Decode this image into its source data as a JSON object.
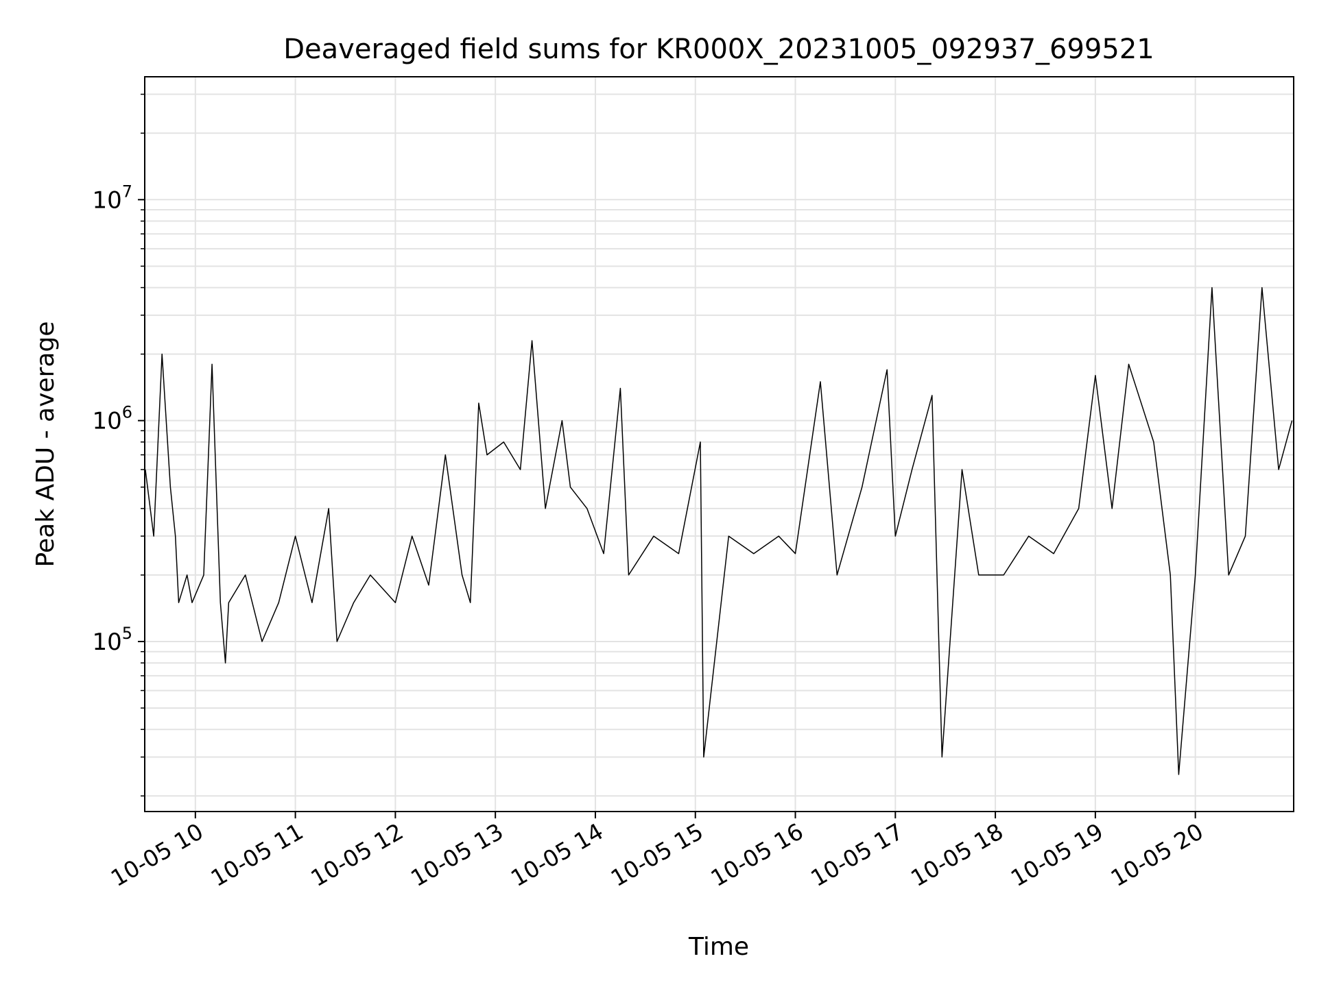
{
  "chart_data": {
    "type": "line",
    "title": "Deaveraged field sums for KR000X_20231005_092937_699521",
    "xlabel": "Time",
    "ylabel": "Peak ADU - average",
    "y_scale": "log",
    "ylim": [
      17000,
      36000000
    ],
    "xlim": [
      "2023-10-05 09:29:37",
      "2023-10-05 20:59:00"
    ],
    "y_ticks": [
      {
        "value": 100000,
        "base": "10",
        "exp": "5"
      },
      {
        "value": 1000000,
        "base": "10",
        "exp": "6"
      },
      {
        "value": 10000000,
        "base": "10",
        "exp": "7"
      }
    ],
    "x_ticks": [
      {
        "value": "2023-10-05 10:00",
        "label": "10-05 10"
      },
      {
        "value": "2023-10-05 11:00",
        "label": "10-05 11"
      },
      {
        "value": "2023-10-05 12:00",
        "label": "10-05 12"
      },
      {
        "value": "2023-10-05 13:00",
        "label": "10-05 13"
      },
      {
        "value": "2023-10-05 14:00",
        "label": "10-05 14"
      },
      {
        "value": "2023-10-05 15:00",
        "label": "10-05 15"
      },
      {
        "value": "2023-10-05 16:00",
        "label": "10-05 16"
      },
      {
        "value": "2023-10-05 17:00",
        "label": "10-05 17"
      },
      {
        "value": "2023-10-05 18:00",
        "label": "10-05 18"
      },
      {
        "value": "2023-10-05 19:00",
        "label": "10-05 19"
      },
      {
        "value": "2023-10-05 20:00",
        "label": "10-05 20"
      }
    ],
    "grid": "on, major and minor",
    "line_color": "#000000",
    "series": [
      {
        "x": [
          "2023-10-05 09:30",
          "2023-10-05 09:35",
          "2023-10-05 09:40",
          "2023-10-05 09:45",
          "2023-10-05 09:48",
          "2023-10-05 09:50",
          "2023-10-05 09:55",
          "2023-10-05 09:58",
          "2023-10-05 10:05",
          "2023-10-05 10:10",
          "2023-10-05 10:15",
          "2023-10-05 10:18",
          "2023-10-05 10:20",
          "2023-10-05 10:30",
          "2023-10-05 10:40",
          "2023-10-05 10:50",
          "2023-10-05 11:00",
          "2023-10-05 11:10",
          "2023-10-05 11:20",
          "2023-10-05 11:25",
          "2023-10-05 11:35",
          "2023-10-05 11:45",
          "2023-10-05 12:00",
          "2023-10-05 12:10",
          "2023-10-05 12:20",
          "2023-10-05 12:30",
          "2023-10-05 12:40",
          "2023-10-05 12:45",
          "2023-10-05 12:50",
          "2023-10-05 12:55",
          "2023-10-05 13:05",
          "2023-10-05 13:15",
          "2023-10-05 13:22",
          "2023-10-05 13:30",
          "2023-10-05 13:40",
          "2023-10-05 13:45",
          "2023-10-05 13:55",
          "2023-10-05 14:05",
          "2023-10-05 14:15",
          "2023-10-05 14:20",
          "2023-10-05 14:35",
          "2023-10-05 14:50",
          "2023-10-05 15:03",
          "2023-10-05 15:05",
          "2023-10-05 15:20",
          "2023-10-05 15:35",
          "2023-10-05 15:50",
          "2023-10-05 16:00",
          "2023-10-05 16:15",
          "2023-10-05 16:25",
          "2023-10-05 16:40",
          "2023-10-05 16:55",
          "2023-10-05 17:00",
          "2023-10-05 17:10",
          "2023-10-05 17:22",
          "2023-10-05 17:28",
          "2023-10-05 17:40",
          "2023-10-05 17:50",
          "2023-10-05 18:05",
          "2023-10-05 18:20",
          "2023-10-05 18:35",
          "2023-10-05 18:50",
          "2023-10-05 19:00",
          "2023-10-05 19:10",
          "2023-10-05 19:20",
          "2023-10-05 19:35",
          "2023-10-05 19:45",
          "2023-10-05 19:50",
          "2023-10-05 20:00",
          "2023-10-05 20:10",
          "2023-10-05 20:20",
          "2023-10-05 20:30",
          "2023-10-05 20:40",
          "2023-10-05 20:50",
          "2023-10-05 20:58"
        ],
        "y": [
          600000,
          300000,
          2000000,
          500000,
          300000,
          150000,
          200000,
          150000,
          200000,
          1800000,
          150000,
          80000,
          150000,
          200000,
          100000,
          150000,
          300000,
          150000,
          400000,
          100000,
          150000,
          200000,
          150000,
          300000,
          180000,
          700000,
          200000,
          150000,
          1200000,
          700000,
          800000,
          600000,
          2300000,
          400000,
          1000000,
          500000,
          400000,
          250000,
          1400000,
          200000,
          300000,
          250000,
          800000,
          30000,
          300000,
          250000,
          300000,
          250000,
          1500000,
          200000,
          500000,
          1700000,
          300000,
          600000,
          1300000,
          30000,
          600000,
          200000,
          200000,
          300000,
          250000,
          400000,
          1600000,
          400000,
          1800000,
          800000,
          200000,
          25000,
          200000,
          4000000,
          200000,
          300000,
          4000000,
          600000,
          1000000
        ]
      }
    ]
  }
}
